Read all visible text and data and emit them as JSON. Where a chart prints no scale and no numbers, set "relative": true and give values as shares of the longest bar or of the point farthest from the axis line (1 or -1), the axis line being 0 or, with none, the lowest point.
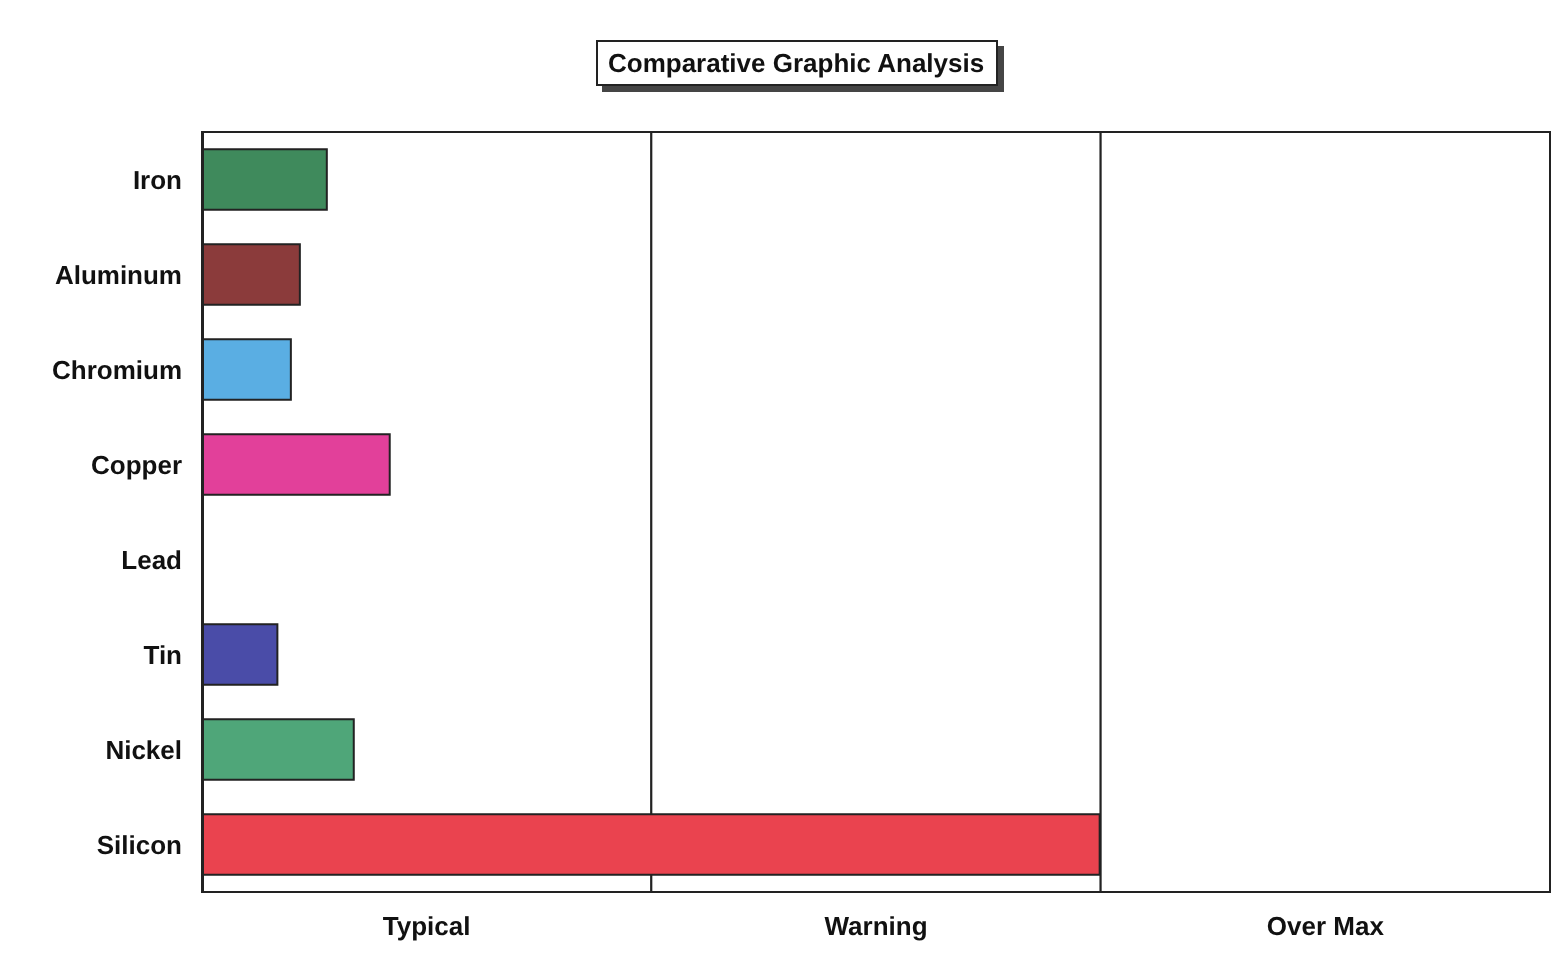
{
  "chart_data": {
    "type": "bar",
    "orientation": "horizontal",
    "relative": true,
    "title": "Comparative Graphic Analysis",
    "categories": [
      "Iron",
      "Aluminum",
      "Chromium",
      "Copper",
      "Lead",
      "Tin",
      "Nickel",
      "Silicon"
    ],
    "values": [
      0.14,
      0.11,
      0.1,
      0.21,
      null,
      0.085,
      0.17,
      1
    ],
    "colors": [
      "#3f8a5c",
      "#8b3b3b",
      "#5aaee3",
      "#e2409a",
      "#888888",
      "#4a4ca8",
      "#4fa679",
      "#ea434f"
    ],
    "bands": [
      {
        "axis": "x",
        "from": 0,
        "to": 0.5,
        "label": "Typical",
        "color": "#ffffff"
      },
      {
        "axis": "x",
        "from": 0.5,
        "to": 1,
        "label": "Warning",
        "color": "#ffffff"
      },
      {
        "axis": "x",
        "from": 1,
        "to": 1.5,
        "label": "Over Max",
        "color": "#ffffff"
      }
    ]
  }
}
